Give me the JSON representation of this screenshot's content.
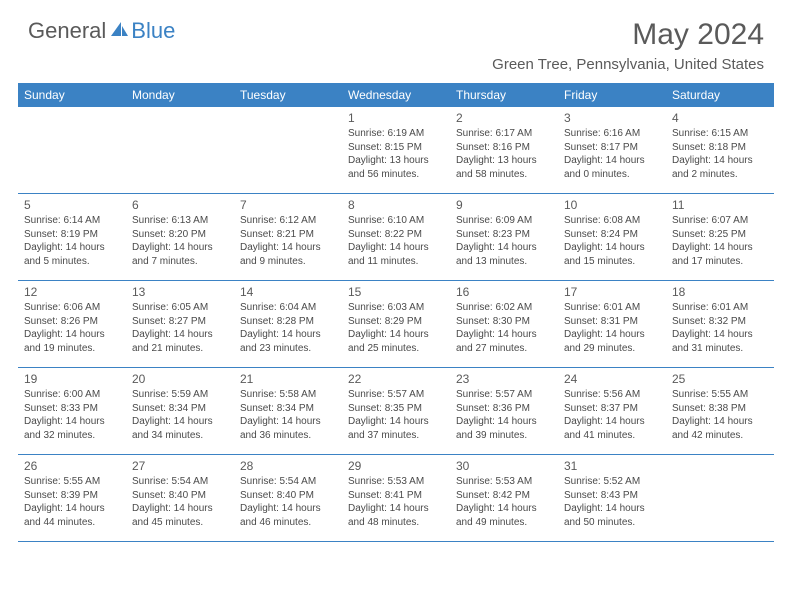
{
  "logo": {
    "text1": "General",
    "text2": "Blue"
  },
  "title": "May 2024",
  "location": "Green Tree, Pennsylvania, United States",
  "colors": {
    "accent": "#3b82c4",
    "text": "#5a5a5a",
    "cellText": "#4a4a4a",
    "bg": "#ffffff"
  },
  "dayHeaders": [
    "Sunday",
    "Monday",
    "Tuesday",
    "Wednesday",
    "Thursday",
    "Friday",
    "Saturday"
  ],
  "weeks": [
    [
      {
        "num": "",
        "sunrise": "",
        "sunset": "",
        "daylight1": "",
        "daylight2": ""
      },
      {
        "num": "",
        "sunrise": "",
        "sunset": "",
        "daylight1": "",
        "daylight2": ""
      },
      {
        "num": "",
        "sunrise": "",
        "sunset": "",
        "daylight1": "",
        "daylight2": ""
      },
      {
        "num": "1",
        "sunrise": "Sunrise: 6:19 AM",
        "sunset": "Sunset: 8:15 PM",
        "daylight1": "Daylight: 13 hours",
        "daylight2": "and 56 minutes."
      },
      {
        "num": "2",
        "sunrise": "Sunrise: 6:17 AM",
        "sunset": "Sunset: 8:16 PM",
        "daylight1": "Daylight: 13 hours",
        "daylight2": "and 58 minutes."
      },
      {
        "num": "3",
        "sunrise": "Sunrise: 6:16 AM",
        "sunset": "Sunset: 8:17 PM",
        "daylight1": "Daylight: 14 hours",
        "daylight2": "and 0 minutes."
      },
      {
        "num": "4",
        "sunrise": "Sunrise: 6:15 AM",
        "sunset": "Sunset: 8:18 PM",
        "daylight1": "Daylight: 14 hours",
        "daylight2": "and 2 minutes."
      }
    ],
    [
      {
        "num": "5",
        "sunrise": "Sunrise: 6:14 AM",
        "sunset": "Sunset: 8:19 PM",
        "daylight1": "Daylight: 14 hours",
        "daylight2": "and 5 minutes."
      },
      {
        "num": "6",
        "sunrise": "Sunrise: 6:13 AM",
        "sunset": "Sunset: 8:20 PM",
        "daylight1": "Daylight: 14 hours",
        "daylight2": "and 7 minutes."
      },
      {
        "num": "7",
        "sunrise": "Sunrise: 6:12 AM",
        "sunset": "Sunset: 8:21 PM",
        "daylight1": "Daylight: 14 hours",
        "daylight2": "and 9 minutes."
      },
      {
        "num": "8",
        "sunrise": "Sunrise: 6:10 AM",
        "sunset": "Sunset: 8:22 PM",
        "daylight1": "Daylight: 14 hours",
        "daylight2": "and 11 minutes."
      },
      {
        "num": "9",
        "sunrise": "Sunrise: 6:09 AM",
        "sunset": "Sunset: 8:23 PM",
        "daylight1": "Daylight: 14 hours",
        "daylight2": "and 13 minutes."
      },
      {
        "num": "10",
        "sunrise": "Sunrise: 6:08 AM",
        "sunset": "Sunset: 8:24 PM",
        "daylight1": "Daylight: 14 hours",
        "daylight2": "and 15 minutes."
      },
      {
        "num": "11",
        "sunrise": "Sunrise: 6:07 AM",
        "sunset": "Sunset: 8:25 PM",
        "daylight1": "Daylight: 14 hours",
        "daylight2": "and 17 minutes."
      }
    ],
    [
      {
        "num": "12",
        "sunrise": "Sunrise: 6:06 AM",
        "sunset": "Sunset: 8:26 PM",
        "daylight1": "Daylight: 14 hours",
        "daylight2": "and 19 minutes."
      },
      {
        "num": "13",
        "sunrise": "Sunrise: 6:05 AM",
        "sunset": "Sunset: 8:27 PM",
        "daylight1": "Daylight: 14 hours",
        "daylight2": "and 21 minutes."
      },
      {
        "num": "14",
        "sunrise": "Sunrise: 6:04 AM",
        "sunset": "Sunset: 8:28 PM",
        "daylight1": "Daylight: 14 hours",
        "daylight2": "and 23 minutes."
      },
      {
        "num": "15",
        "sunrise": "Sunrise: 6:03 AM",
        "sunset": "Sunset: 8:29 PM",
        "daylight1": "Daylight: 14 hours",
        "daylight2": "and 25 minutes."
      },
      {
        "num": "16",
        "sunrise": "Sunrise: 6:02 AM",
        "sunset": "Sunset: 8:30 PM",
        "daylight1": "Daylight: 14 hours",
        "daylight2": "and 27 minutes."
      },
      {
        "num": "17",
        "sunrise": "Sunrise: 6:01 AM",
        "sunset": "Sunset: 8:31 PM",
        "daylight1": "Daylight: 14 hours",
        "daylight2": "and 29 minutes."
      },
      {
        "num": "18",
        "sunrise": "Sunrise: 6:01 AM",
        "sunset": "Sunset: 8:32 PM",
        "daylight1": "Daylight: 14 hours",
        "daylight2": "and 31 minutes."
      }
    ],
    [
      {
        "num": "19",
        "sunrise": "Sunrise: 6:00 AM",
        "sunset": "Sunset: 8:33 PM",
        "daylight1": "Daylight: 14 hours",
        "daylight2": "and 32 minutes."
      },
      {
        "num": "20",
        "sunrise": "Sunrise: 5:59 AM",
        "sunset": "Sunset: 8:34 PM",
        "daylight1": "Daylight: 14 hours",
        "daylight2": "and 34 minutes."
      },
      {
        "num": "21",
        "sunrise": "Sunrise: 5:58 AM",
        "sunset": "Sunset: 8:34 PM",
        "daylight1": "Daylight: 14 hours",
        "daylight2": "and 36 minutes."
      },
      {
        "num": "22",
        "sunrise": "Sunrise: 5:57 AM",
        "sunset": "Sunset: 8:35 PM",
        "daylight1": "Daylight: 14 hours",
        "daylight2": "and 37 minutes."
      },
      {
        "num": "23",
        "sunrise": "Sunrise: 5:57 AM",
        "sunset": "Sunset: 8:36 PM",
        "daylight1": "Daylight: 14 hours",
        "daylight2": "and 39 minutes."
      },
      {
        "num": "24",
        "sunrise": "Sunrise: 5:56 AM",
        "sunset": "Sunset: 8:37 PM",
        "daylight1": "Daylight: 14 hours",
        "daylight2": "and 41 minutes."
      },
      {
        "num": "25",
        "sunrise": "Sunrise: 5:55 AM",
        "sunset": "Sunset: 8:38 PM",
        "daylight1": "Daylight: 14 hours",
        "daylight2": "and 42 minutes."
      }
    ],
    [
      {
        "num": "26",
        "sunrise": "Sunrise: 5:55 AM",
        "sunset": "Sunset: 8:39 PM",
        "daylight1": "Daylight: 14 hours",
        "daylight2": "and 44 minutes."
      },
      {
        "num": "27",
        "sunrise": "Sunrise: 5:54 AM",
        "sunset": "Sunset: 8:40 PM",
        "daylight1": "Daylight: 14 hours",
        "daylight2": "and 45 minutes."
      },
      {
        "num": "28",
        "sunrise": "Sunrise: 5:54 AM",
        "sunset": "Sunset: 8:40 PM",
        "daylight1": "Daylight: 14 hours",
        "daylight2": "and 46 minutes."
      },
      {
        "num": "29",
        "sunrise": "Sunrise: 5:53 AM",
        "sunset": "Sunset: 8:41 PM",
        "daylight1": "Daylight: 14 hours",
        "daylight2": "and 48 minutes."
      },
      {
        "num": "30",
        "sunrise": "Sunrise: 5:53 AM",
        "sunset": "Sunset: 8:42 PM",
        "daylight1": "Daylight: 14 hours",
        "daylight2": "and 49 minutes."
      },
      {
        "num": "31",
        "sunrise": "Sunrise: 5:52 AM",
        "sunset": "Sunset: 8:43 PM",
        "daylight1": "Daylight: 14 hours",
        "daylight2": "and 50 minutes."
      },
      {
        "num": "",
        "sunrise": "",
        "sunset": "",
        "daylight1": "",
        "daylight2": ""
      }
    ]
  ]
}
